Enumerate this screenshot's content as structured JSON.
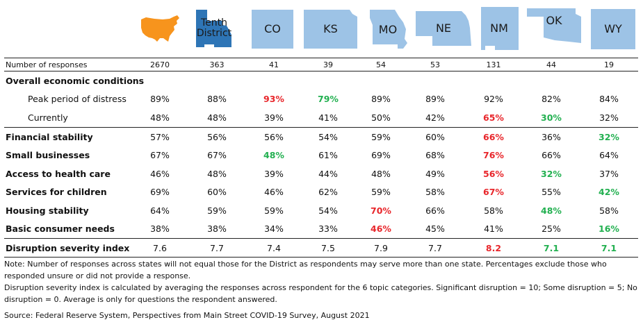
{
  "colors": {
    "us_map": "#F7941D",
    "district_map": "#2E75B6",
    "state_map": "#9DC3E6",
    "high": "#E8262B",
    "low": "#22B050"
  },
  "header": {
    "columns": [
      {
        "label": "",
        "icon": "us-map-icon"
      },
      {
        "label": "Tenth District",
        "icon": "tenth-district-map-icon"
      },
      {
        "label": "CO",
        "icon": "colorado-map-icon"
      },
      {
        "label": "KS",
        "icon": "kansas-map-icon"
      },
      {
        "label": "MO",
        "icon": "missouri-map-icon"
      },
      {
        "label": "NE",
        "icon": "nebraska-map-icon"
      },
      {
        "label": "NM",
        "icon": "new-mexico-map-icon"
      },
      {
        "label": "OK",
        "icon": "oklahoma-map-icon"
      },
      {
        "label": "WY",
        "icon": "wyoming-map-icon"
      }
    ]
  },
  "table": {
    "responses": {
      "label": "Number of responses",
      "values": [
        "2670",
        "363",
        "41",
        "39",
        "54",
        "53",
        "131",
        "44",
        "19"
      ]
    },
    "section": {
      "label": "Overall economic conditions"
    },
    "sub_rows": [
      {
        "label": "Peak period of distress",
        "values": [
          "89%",
          "88%",
          "93%",
          "79%",
          "89%",
          "89%",
          "92%",
          "82%",
          "84%"
        ],
        "highlight": [
          "",
          "",
          "hi",
          "lo",
          "",
          "",
          "",
          "",
          ""
        ]
      },
      {
        "label": "Currently",
        "values": [
          "48%",
          "48%",
          "39%",
          "41%",
          "50%",
          "42%",
          "65%",
          "30%",
          "32%"
        ],
        "highlight": [
          "",
          "",
          "",
          "",
          "",
          "",
          "hi",
          "lo",
          ""
        ]
      }
    ],
    "category_rows": [
      {
        "label": "Financial stability",
        "values": [
          "57%",
          "56%",
          "56%",
          "54%",
          "59%",
          "60%",
          "66%",
          "36%",
          "32%"
        ],
        "highlight": [
          "",
          "",
          "",
          "",
          "",
          "",
          "hi",
          "",
          "lo"
        ]
      },
      {
        "label": "Small businesses",
        "values": [
          "67%",
          "67%",
          "48%",
          "61%",
          "69%",
          "68%",
          "76%",
          "66%",
          "64%"
        ],
        "highlight": [
          "",
          "",
          "lo",
          "",
          "",
          "",
          "hi",
          "",
          ""
        ]
      },
      {
        "label": "Access to health care",
        "values": [
          "46%",
          "48%",
          "39%",
          "44%",
          "48%",
          "49%",
          "56%",
          "32%",
          "37%"
        ],
        "highlight": [
          "",
          "",
          "",
          "",
          "",
          "",
          "hi",
          "lo",
          ""
        ]
      },
      {
        "label": "Services for children",
        "values": [
          "69%",
          "60%",
          "46%",
          "62%",
          "59%",
          "58%",
          "67%",
          "55%",
          "42%"
        ],
        "highlight": [
          "",
          "",
          "",
          "",
          "",
          "",
          "hi",
          "",
          "lo"
        ]
      },
      {
        "label": "Housing stability",
        "values": [
          "64%",
          "59%",
          "59%",
          "54%",
          "70%",
          "66%",
          "58%",
          "48%",
          "58%"
        ],
        "highlight": [
          "",
          "",
          "",
          "",
          "hi",
          "",
          "",
          "lo",
          ""
        ]
      },
      {
        "label": "Basic consumer needs",
        "values": [
          "38%",
          "38%",
          "34%",
          "33%",
          "46%",
          "45%",
          "41%",
          "25%",
          "16%"
        ],
        "highlight": [
          "",
          "",
          "",
          "",
          "hi",
          "",
          "",
          "",
          "lo"
        ]
      }
    ],
    "dsi": {
      "label": "Disruption severity index",
      "values": [
        "7.6",
        "7.7",
        "7.4",
        "7.5",
        "7.9",
        "7.7",
        "8.2",
        "7.1",
        "7.1"
      ],
      "highlight": [
        "",
        "",
        "",
        "",
        "",
        "",
        "hi",
        "lo",
        "lo"
      ]
    }
  },
  "notes": {
    "note1": "Note: Number of responses across states will not equal those for the District as respondents may serve more than one state. Percentages exclude those who responded unsure or did not provide a response.",
    "note2": "Disruption severity index is calculated by averaging the responses across respondent for the 6 topic categories. Significant disruption = 10; Some disruption = 5; No disruption = 0. Average is only for questions the respondent answered.",
    "source": "Source: Federal Reserve System, Perspectives from Main Street COVID-19 Survey, August 2021"
  }
}
